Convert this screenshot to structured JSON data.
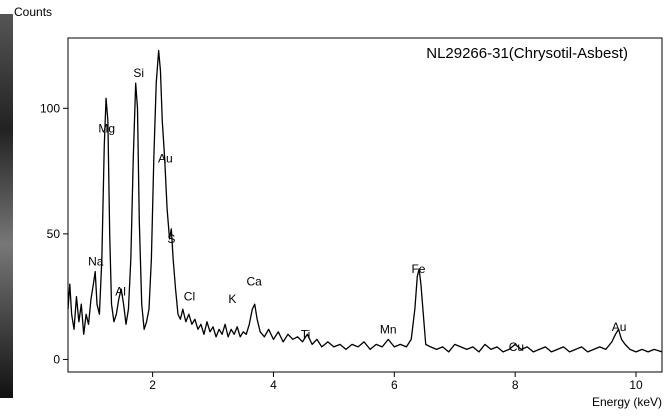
{
  "chart_data": {
    "type": "line",
    "title": "NL29266-31(Chrysotil-Asbest)",
    "y_label": "Counts",
    "x_label": "Energy (keV)",
    "color": "#000000",
    "xlim": [
      0.6,
      10.43
    ],
    "ylim": [
      -5,
      128
    ],
    "xticks": [
      2,
      4,
      6,
      8,
      10
    ],
    "yticks": [
      0,
      50,
      100
    ],
    "x": [
      0.6,
      0.63,
      0.66,
      0.7,
      0.74,
      0.78,
      0.82,
      0.86,
      0.9,
      0.94,
      0.98,
      1.02,
      1.05,
      1.08,
      1.12,
      1.16,
      1.2,
      1.23,
      1.26,
      1.29,
      1.32,
      1.36,
      1.4,
      1.44,
      1.48,
      1.52,
      1.56,
      1.6,
      1.64,
      1.68,
      1.72,
      1.75,
      1.78,
      1.82,
      1.86,
      1.9,
      1.94,
      1.98,
      2.02,
      2.06,
      2.1,
      2.13,
      2.16,
      2.2,
      2.24,
      2.28,
      2.31,
      2.34,
      2.38,
      2.42,
      2.46,
      2.5,
      2.55,
      2.6,
      2.65,
      2.7,
      2.75,
      2.8,
      2.85,
      2.9,
      2.95,
      3.0,
      3.05,
      3.1,
      3.15,
      3.2,
      3.25,
      3.3,
      3.35,
      3.4,
      3.45,
      3.5,
      3.55,
      3.6,
      3.65,
      3.69,
      3.73,
      3.78,
      3.85,
      3.92,
      4.0,
      4.08,
      4.16,
      4.24,
      4.32,
      4.4,
      4.48,
      4.56,
      4.64,
      4.72,
      4.8,
      4.9,
      5.0,
      5.1,
      5.2,
      5.3,
      5.4,
      5.5,
      5.6,
      5.7,
      5.8,
      5.9,
      6.0,
      6.1,
      6.2,
      6.28,
      6.34,
      6.38,
      6.41,
      6.44,
      6.48,
      6.52,
      6.6,
      6.7,
      6.8,
      6.9,
      7.0,
      7.1,
      7.2,
      7.3,
      7.4,
      7.5,
      7.6,
      7.7,
      7.8,
      7.9,
      8.0,
      8.1,
      8.2,
      8.3,
      8.4,
      8.5,
      8.6,
      8.7,
      8.8,
      8.9,
      9.0,
      9.1,
      9.2,
      9.3,
      9.4,
      9.5,
      9.6,
      9.66,
      9.71,
      9.76,
      9.82,
      9.9,
      10.0,
      10.1,
      10.2,
      10.3,
      10.43
    ],
    "values": [
      20,
      30,
      18,
      12,
      25,
      15,
      22,
      10,
      18,
      14,
      24,
      30,
      35,
      22,
      18,
      40,
      85,
      104,
      95,
      50,
      22,
      15,
      18,
      24,
      28,
      22,
      14,
      20,
      40,
      80,
      110,
      100,
      55,
      22,
      12,
      15,
      20,
      40,
      80,
      110,
      123,
      115,
      95,
      80,
      60,
      48,
      52,
      40,
      28,
      18,
      16,
      20,
      15,
      18,
      14,
      16,
      12,
      14,
      10,
      15,
      11,
      13,
      9,
      12,
      10,
      14,
      9,
      12,
      10,
      13,
      9,
      11,
      10,
      14,
      20,
      22,
      16,
      11,
      9,
      12,
      8,
      11,
      7,
      10,
      8,
      9,
      7,
      10,
      6,
      8,
      5,
      7,
      5,
      6,
      4,
      6,
      5,
      7,
      4,
      6,
      5,
      8,
      5,
      6,
      5,
      8,
      20,
      33,
      36,
      30,
      18,
      6,
      5,
      4,
      5,
      3,
      6,
      5,
      4,
      5,
      3,
      6,
      4,
      5,
      3,
      4,
      6,
      4,
      5,
      3,
      4,
      5,
      3,
      4,
      5,
      3,
      4,
      5,
      3,
      4,
      5,
      4,
      7,
      10,
      12,
      8,
      6,
      4,
      3,
      4,
      3,
      4,
      3
    ],
    "annotations": [
      {
        "text": "Na",
        "x": 1.06,
        "y": 39
      },
      {
        "text": "Mg",
        "x": 1.24,
        "y": 92
      },
      {
        "text": "Al",
        "x": 1.47,
        "y": 27
      },
      {
        "text": "Si",
        "x": 1.77,
        "y": 114
      },
      {
        "text": "Au",
        "x": 2.21,
        "y": 80
      },
      {
        "text": "S",
        "x": 2.31,
        "y": 48
      },
      {
        "text": "Cl",
        "x": 2.61,
        "y": 25
      },
      {
        "text": "K",
        "x": 3.32,
        "y": 24
      },
      {
        "text": "Ca",
        "x": 3.68,
        "y": 31
      },
      {
        "text": "Ti",
        "x": 4.53,
        "y": 10
      },
      {
        "text": "Mn",
        "x": 5.9,
        "y": 12
      },
      {
        "text": "Fe",
        "x": 6.4,
        "y": 36
      },
      {
        "text": "Cu",
        "x": 8.02,
        "y": 5
      },
      {
        "text": "Au",
        "x": 9.72,
        "y": 13
      }
    ]
  }
}
